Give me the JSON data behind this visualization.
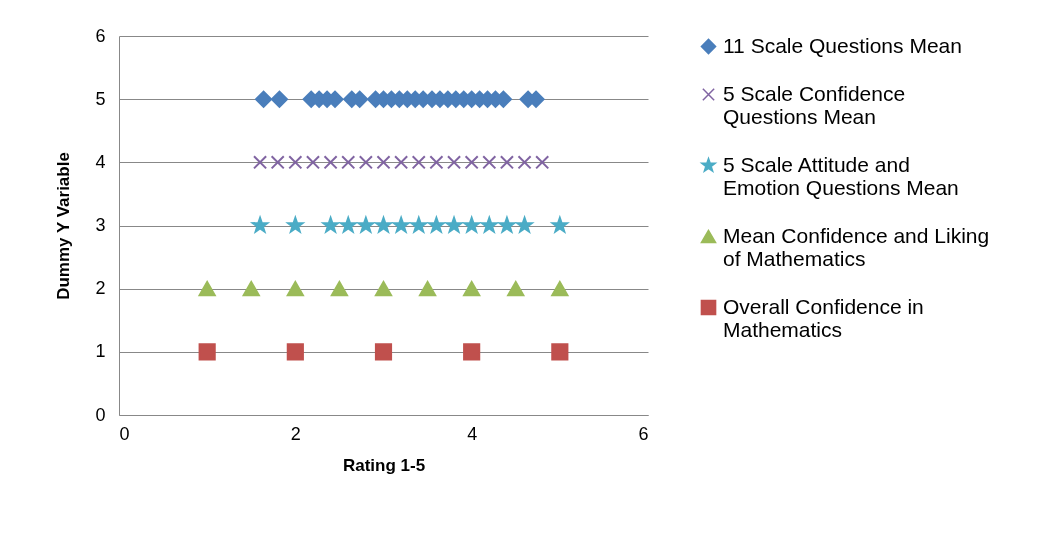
{
  "chart_data": {
    "type": "scatter",
    "xlabel": "Rating 1-5",
    "ylabel": "Dummy Y Variable",
    "xlim": [
      0,
      6
    ],
    "xticks": [
      0,
      2,
      4,
      6
    ],
    "ylim": [
      0,
      6
    ],
    "yticks": [
      0,
      1,
      2,
      3,
      4,
      5,
      6
    ],
    "grid": "y",
    "legend": "right",
    "series": [
      {
        "name": "11 Scale Questions Mean",
        "color": "#4a7ebb",
        "marker": "diamond",
        "x": [
          1.64,
          1.82,
          2.18,
          2.27,
          2.36,
          2.45,
          2.64,
          2.73,
          2.91,
          3.0,
          3.09,
          3.18,
          3.27,
          3.36,
          3.45,
          3.55,
          3.64,
          3.73,
          3.82,
          3.91,
          4.0,
          4.09,
          4.18,
          4.27,
          4.36,
          4.64,
          4.73
        ],
        "values": [
          5,
          5,
          5,
          5,
          5,
          5,
          5,
          5,
          5,
          5,
          5,
          5,
          5,
          5,
          5,
          5,
          5,
          5,
          5,
          5,
          5,
          5,
          5,
          5,
          5,
          5,
          5
        ]
      },
      {
        "name": "5 Scale Confidence Questions Mean",
        "color": "#8064a2",
        "marker": "cross",
        "x": [
          1.6,
          1.8,
          2.0,
          2.2,
          2.4,
          2.6,
          2.8,
          3.0,
          3.2,
          3.4,
          3.6,
          3.8,
          4.0,
          4.2,
          4.4,
          4.6,
          4.8
        ],
        "values": [
          4,
          4,
          4,
          4,
          4,
          4,
          4,
          4,
          4,
          4,
          4,
          4,
          4,
          4,
          4,
          4,
          4
        ]
      },
      {
        "name": "5 Scale Attitude and Emotion Questions Mean",
        "color": "#4bacc6",
        "marker": "star",
        "x": [
          1.6,
          2.0,
          2.4,
          2.6,
          2.8,
          3.0,
          3.2,
          3.4,
          3.6,
          3.8,
          4.0,
          4.2,
          4.4,
          4.6,
          5.0
        ],
        "values": [
          3,
          3,
          3,
          3,
          3,
          3,
          3,
          3,
          3,
          3,
          3,
          3,
          3,
          3,
          3
        ]
      },
      {
        "name": "Mean Confidence and Liking of Mathematics",
        "color": "#9bbb59",
        "marker": "triangle",
        "x": [
          1.0,
          1.5,
          2.0,
          2.5,
          3.0,
          3.5,
          4.0,
          4.5,
          5.0
        ],
        "values": [
          2,
          2,
          2,
          2,
          2,
          2,
          2,
          2,
          2
        ]
      },
      {
        "name": "Overall Confidence in Mathematics",
        "color": "#c0504d",
        "marker": "square",
        "x": [
          1,
          2,
          3,
          4,
          5
        ],
        "values": [
          1,
          1,
          1,
          1,
          1
        ]
      }
    ]
  }
}
